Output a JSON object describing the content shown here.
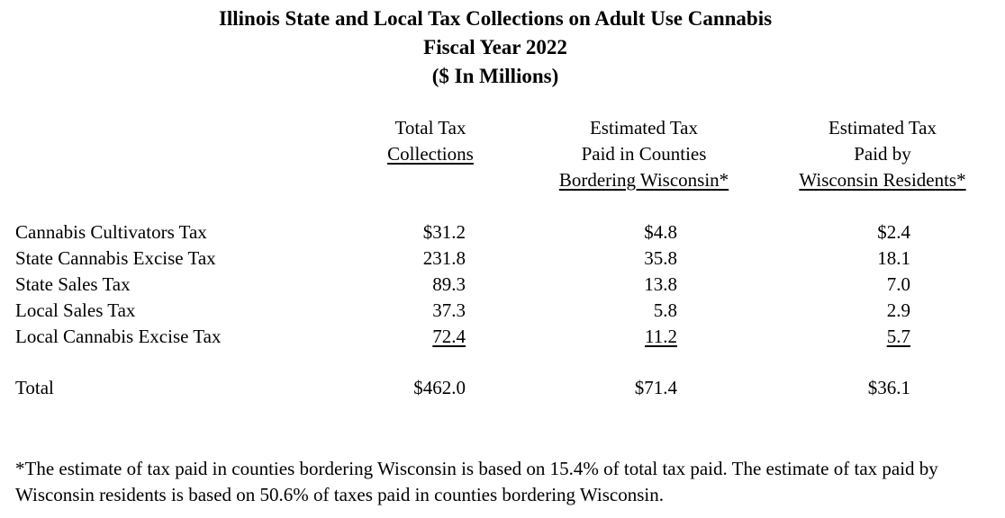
{
  "title": {
    "line1": "Illinois State and Local Tax Collections on Adult Use Cannabis",
    "line2": "Fiscal Year 2022",
    "line3": "($ In Millions)"
  },
  "columns": [
    {
      "lines": [
        "",
        "Total Tax",
        "Collections"
      ]
    },
    {
      "lines": [
        "Estimated Tax",
        "Paid in Counties",
        "Bordering Wisconsin*"
      ]
    },
    {
      "lines": [
        "Estimated Tax",
        "Paid by",
        "Wisconsin Residents*"
      ]
    }
  ],
  "rows": [
    {
      "label": "Cannabis Cultivators Tax",
      "values": [
        "$31.2",
        "$4.8",
        "$2.4"
      ]
    },
    {
      "label": "State Cannabis Excise Tax",
      "values": [
        "231.8",
        "35.8",
        "18.1"
      ]
    },
    {
      "label": "State Sales Tax",
      "values": [
        "89.3",
        "13.8",
        "7.0"
      ]
    },
    {
      "label": "Local Sales Tax",
      "values": [
        "37.3",
        "5.8",
        "2.9"
      ]
    },
    {
      "label": "Local Cannabis Excise Tax",
      "values": [
        "72.4",
        "11.2",
        "5.7"
      ]
    }
  ],
  "total": {
    "label": "Total",
    "values": [
      "$462.0",
      "$71.4",
      "$36.1"
    ]
  },
  "footnote": "*The estimate of tax paid in counties bordering Wisconsin is based on 15.4% of total tax paid. The estimate of tax paid by Wisconsin residents is based on 50.6% of taxes paid in counties bordering Wisconsin."
}
